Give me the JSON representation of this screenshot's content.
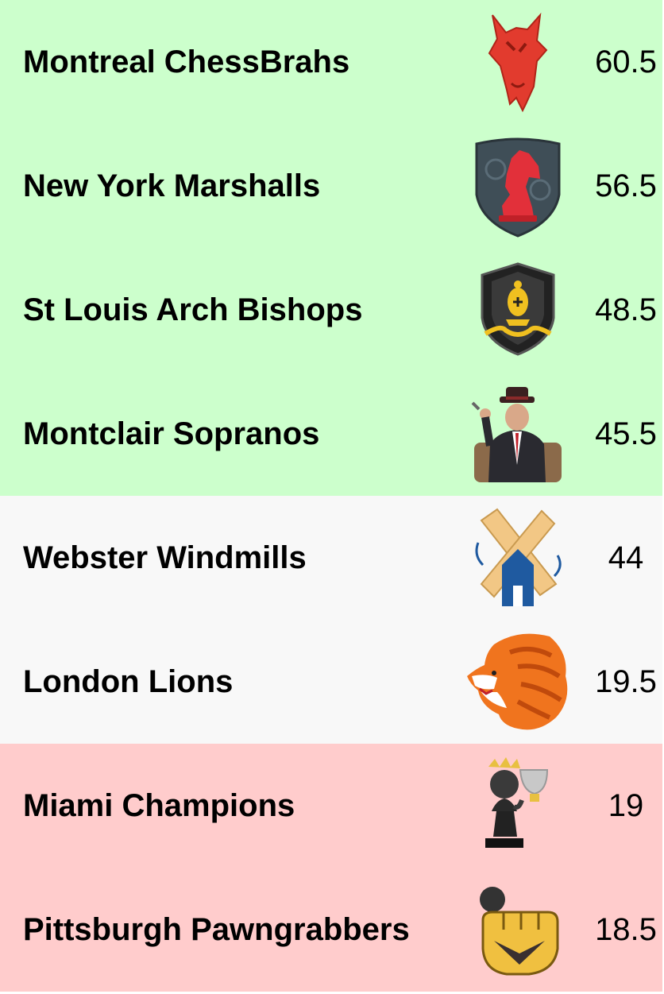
{
  "standings": [
    {
      "team": "Montreal ChessBrahs",
      "score": "60.5",
      "zone": "green",
      "logo_icon": "red-horse-head-icon"
    },
    {
      "team": "New York Marshalls",
      "score": "56.5",
      "zone": "green",
      "logo_icon": "red-knight-shield-icon"
    },
    {
      "team": "St Louis Arch Bishops",
      "score": "48.5",
      "zone": "green",
      "logo_icon": "gold-bishop-shield-icon"
    },
    {
      "team": "Montclair Sopranos",
      "score": "45.5",
      "zone": "green",
      "logo_icon": "mobster-in-chair-icon"
    },
    {
      "team": "Webster Windmills",
      "score": "44",
      "zone": "grey",
      "logo_icon": "windmill-icon"
    },
    {
      "team": "London Lions",
      "score": "19.5",
      "zone": "grey",
      "logo_icon": "orange-lion-head-icon"
    },
    {
      "team": "Miami Champions",
      "score": "19",
      "zone": "red",
      "logo_icon": "pawn-with-trophy-icon"
    },
    {
      "team": "Pittsburgh Pawngrabbers",
      "score": "18.5",
      "zone": "red",
      "logo_icon": "fist-grabbing-pawn-icon"
    }
  ],
  "colors": {
    "green_zone": "#ccffcc",
    "grey_zone": "#f8f8f8",
    "red_zone": "#ffcccc"
  }
}
